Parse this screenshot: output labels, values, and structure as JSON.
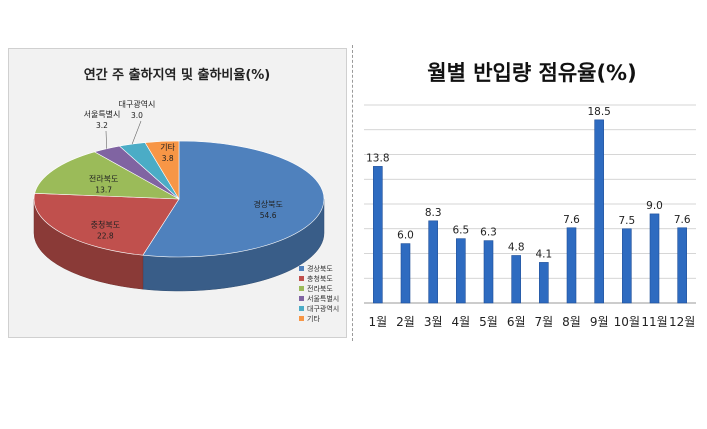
{
  "chart_data": [
    {
      "type": "pie",
      "title": "연간 주 출하지역 및 출하비율(%)",
      "categories": [
        "경상북도",
        "충청북도",
        "전라북도",
        "서울특별시",
        "대구광역시",
        "기타"
      ],
      "values": [
        54.6,
        22.8,
        13.7,
        3.2,
        3.0,
        3.8
      ],
      "value_labels": [
        "54.6",
        "22.8",
        "13.7",
        "3.2",
        "3.0",
        "3.8"
      ],
      "colors": [
        "#4f81bd",
        "#c0504d",
        "#9bbb59",
        "#8064a2",
        "#4bacc6",
        "#f79646"
      ],
      "legend_position": "bottom-right",
      "style": "3d"
    },
    {
      "type": "bar",
      "title": "월별 반입량 점유율(%)",
      "categories": [
        "1월",
        "2월",
        "3월",
        "4월",
        "5월",
        "6월",
        "7월",
        "8월",
        "9월",
        "10월",
        "11월",
        "12월"
      ],
      "values": [
        13.8,
        6.0,
        8.3,
        6.5,
        6.3,
        4.8,
        4.1,
        7.6,
        18.5,
        7.5,
        9.0,
        7.6
      ],
      "value_labels": [
        "13.8",
        "6.0",
        "8.3",
        "6.5",
        "6.3",
        "4.8",
        "4.1",
        "7.6",
        "18.5",
        "7.5",
        "9.0",
        "7.6"
      ],
      "ylim": [
        0,
        20
      ],
      "y_gridlines": [
        2.5,
        5,
        7.5,
        10,
        12.5,
        15,
        17.5,
        20
      ],
      "grid": true,
      "bar_color": "#2e6bc0"
    }
  ]
}
